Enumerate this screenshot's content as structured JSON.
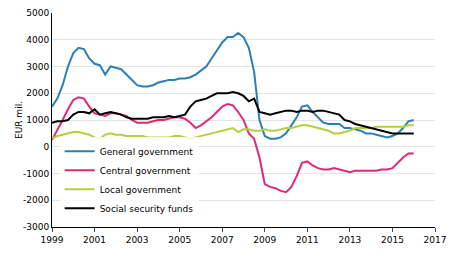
{
  "chart_data": {
    "type": "line",
    "y_label": "EUR mil.",
    "x": [
      1999,
      1999.25,
      1999.5,
      1999.75,
      2000,
      2000.25,
      2000.5,
      2000.75,
      2001,
      2001.25,
      2001.5,
      2001.75,
      2002,
      2002.25,
      2002.5,
      2002.75,
      2003,
      2003.25,
      2003.5,
      2003.75,
      2004,
      2004.25,
      2004.5,
      2004.75,
      2005,
      2005.25,
      2005.5,
      2005.75,
      2006,
      2006.25,
      2006.5,
      2006.75,
      2007,
      2007.25,
      2007.5,
      2007.75,
      2008,
      2008.25,
      2008.5,
      2008.75,
      2009,
      2009.25,
      2009.5,
      2009.75,
      2010,
      2010.25,
      2010.5,
      2010.75,
      2011,
      2011.25,
      2011.5,
      2011.75,
      2012,
      2012.25,
      2012.5,
      2012.75,
      2013,
      2013.25,
      2013.5,
      2013.75,
      2014,
      2014.25,
      2014.5,
      2014.75,
      2015,
      2015.25,
      2015.5,
      2015.75,
      2016
    ],
    "series": [
      {
        "name": "General government",
        "color": "#2a7fb8",
        "values": [
          1500,
          1800,
          2300,
          3000,
          3500,
          3700,
          3650,
          3300,
          3100,
          3050,
          2700,
          3000,
          2950,
          2900,
          2700,
          2500,
          2300,
          2250,
          2250,
          2300,
          2400,
          2450,
          2500,
          2500,
          2550,
          2550,
          2600,
          2700,
          2850,
          3000,
          3300,
          3600,
          3900,
          4100,
          4100,
          4250,
          4100,
          3700,
          2800,
          1000,
          400,
          300,
          300,
          350,
          500,
          800,
          1100,
          1500,
          1550,
          1300,
          1100,
          900,
          850,
          850,
          850,
          700,
          700,
          650,
          600,
          500,
          500,
          450,
          400,
          350,
          400,
          500,
          700,
          950,
          1000
        ]
      },
      {
        "name": "Central government",
        "color": "#e0287a",
        "values": [
          250,
          600,
          1000,
          1400,
          1750,
          1850,
          1800,
          1500,
          1250,
          1200,
          1150,
          1250,
          1250,
          1200,
          1150,
          1000,
          900,
          900,
          900,
          950,
          1000,
          1000,
          1050,
          1100,
          1100,
          1050,
          900,
          700,
          800,
          950,
          1100,
          1300,
          1500,
          1600,
          1550,
          1300,
          1000,
          500,
          300,
          -400,
          -1400,
          -1500,
          -1550,
          -1650,
          -1700,
          -1500,
          -1100,
          -600,
          -550,
          -700,
          -800,
          -850,
          -850,
          -800,
          -850,
          -900,
          -950,
          -900,
          -900,
          -900,
          -900,
          -900,
          -850,
          -850,
          -800,
          -600,
          -400,
          -250,
          -250
        ]
      },
      {
        "name": "Local government",
        "color": "#b6cf3c",
        "values": [
          300,
          400,
          450,
          500,
          550,
          550,
          500,
          450,
          350,
          300,
          450,
          500,
          450,
          450,
          400,
          400,
          400,
          400,
          350,
          350,
          350,
          350,
          350,
          400,
          400,
          350,
          300,
          350,
          400,
          450,
          500,
          550,
          600,
          650,
          700,
          550,
          650,
          650,
          600,
          600,
          650,
          600,
          600,
          650,
          700,
          700,
          750,
          800,
          800,
          750,
          700,
          650,
          600,
          500,
          500,
          550,
          600,
          700,
          700,
          700,
          700,
          750,
          750,
          750,
          750,
          750,
          750,
          800,
          800
        ]
      },
      {
        "name": "Social security funds",
        "color": "#000000",
        "values": [
          900,
          950,
          950,
          1000,
          1200,
          1300,
          1300,
          1250,
          1400,
          1200,
          1250,
          1300,
          1250,
          1200,
          1100,
          1050,
          1050,
          1050,
          1050,
          1100,
          1100,
          1100,
          1150,
          1100,
          1150,
          1200,
          1500,
          1700,
          1750,
          1800,
          1900,
          2000,
          2000,
          2000,
          2050,
          2000,
          1900,
          1700,
          1800,
          1300,
          1250,
          1200,
          1250,
          1300,
          1350,
          1350,
          1300,
          1350,
          1350,
          1300,
          1350,
          1350,
          1300,
          1250,
          1200,
          1000,
          950,
          850,
          800,
          750,
          700,
          650,
          600,
          550,
          500,
          500,
          500,
          500,
          500
        ]
      }
    ],
    "xlim": [
      1999,
      2017
    ],
    "xticks": [
      1999,
      2001,
      2003,
      2005,
      2007,
      2009,
      2011,
      2013,
      2015,
      2017
    ],
    "ylim": [
      -3000,
      5000
    ],
    "yticks": [
      -3000,
      -2000,
      -1000,
      0,
      1000,
      2000,
      3000,
      4000,
      5000
    ],
    "grid": true,
    "legend": "lower left"
  }
}
